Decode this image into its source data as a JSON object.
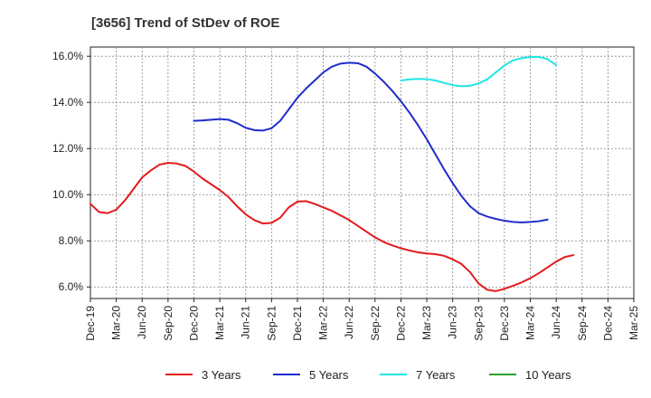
{
  "chart_data": {
    "type": "line",
    "title": "[3656]  Trend of StDev of ROE",
    "xlabel": "",
    "ylabel": "",
    "ylim": [
      5.5,
      16.4
    ],
    "y_ticks": [
      6.0,
      8.0,
      10.0,
      12.0,
      14.0,
      16.0
    ],
    "y_tick_labels": [
      "6.0%",
      "8.0%",
      "10.0%",
      "12.0%",
      "14.0%",
      "16.0%"
    ],
    "x_tick_labels": [
      "Dec-19",
      "Mar-20",
      "Jun-20",
      "Sep-20",
      "Dec-20",
      "Mar-21",
      "Jun-21",
      "Sep-21",
      "Dec-21",
      "Mar-22",
      "Jun-22",
      "Sep-22",
      "Dec-22",
      "Mar-23",
      "Jun-23",
      "Sep-23",
      "Dec-23",
      "Mar-24",
      "Jun-24",
      "Sep-24",
      "Dec-24",
      "Mar-25"
    ],
    "grid": true,
    "legend_position": "bottom",
    "series": [
      {
        "name": "3 Years",
        "color": "#e31a1c",
        "start_index": 0,
        "values": [
          9.6,
          9.25,
          9.2,
          9.35,
          9.75,
          10.25,
          10.75,
          11.05,
          11.3,
          11.38,
          11.35,
          11.25,
          11.0,
          10.7,
          10.45,
          10.2,
          9.9,
          9.5,
          9.15,
          8.9,
          8.75,
          8.78,
          9.0,
          9.45,
          9.7,
          9.72,
          9.6,
          9.45,
          9.3,
          9.1,
          8.9,
          8.65,
          8.4,
          8.15,
          7.95,
          7.8,
          7.68,
          7.58,
          7.5,
          7.45,
          7.42,
          7.35,
          7.2,
          7.0,
          6.65,
          6.15,
          5.88,
          5.82,
          5.92,
          6.05,
          6.2,
          6.38,
          6.6,
          6.85,
          7.1,
          7.3,
          7.38
        ]
      },
      {
        "name": "5 Years",
        "color": "#1f2ccc",
        "start_index": 12,
        "values": [
          13.2,
          13.22,
          13.25,
          13.28,
          13.25,
          13.1,
          12.9,
          12.8,
          12.78,
          12.88,
          13.2,
          13.7,
          14.2,
          14.6,
          14.95,
          15.3,
          15.55,
          15.68,
          15.72,
          15.7,
          15.55,
          15.25,
          14.9,
          14.5,
          14.05,
          13.55,
          13.0,
          12.4,
          11.75,
          11.1,
          10.5,
          9.95,
          9.5,
          9.2,
          9.05,
          8.95,
          8.87,
          8.82,
          8.8,
          8.82,
          8.85,
          8.92
        ]
      },
      {
        "name": "7 Years",
        "color": "#22e5e5",
        "start_index": 36,
        "values": [
          14.95,
          15.0,
          15.02,
          15.01,
          14.95,
          14.85,
          14.75,
          14.7,
          14.72,
          14.82,
          15.0,
          15.3,
          15.6,
          15.82,
          15.92,
          15.97,
          15.97,
          15.88,
          15.62
        ]
      },
      {
        "name": "10 Years",
        "color": "#2ca02c",
        "start_index": 0,
        "values": []
      }
    ]
  }
}
